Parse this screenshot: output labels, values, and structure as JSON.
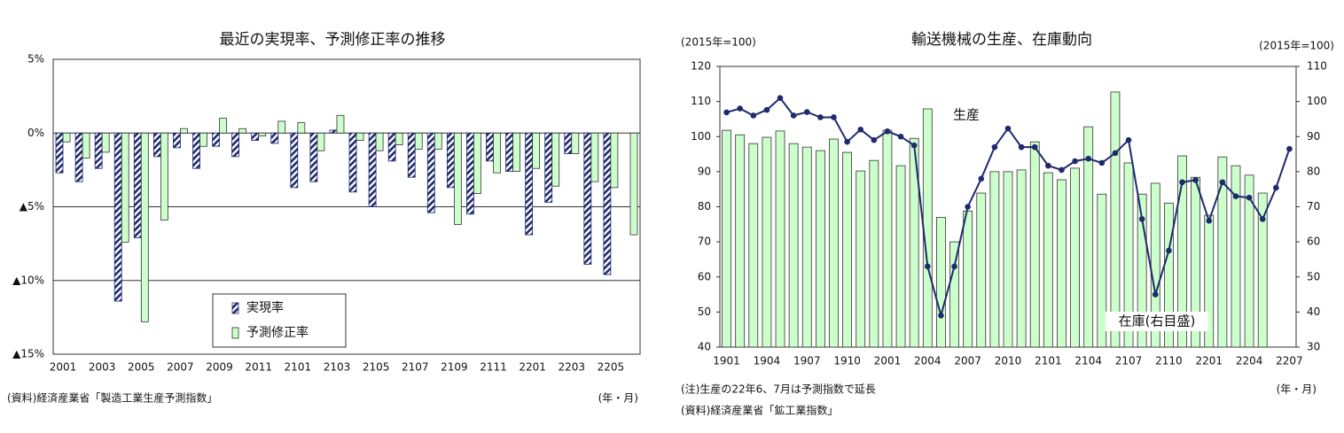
{
  "chart_data": [
    {
      "type": "bar",
      "title": "最近の実現率、予測修正率の推移",
      "categories": [
        "2001",
        null,
        "2003",
        null,
        "2005",
        null,
        "2007",
        null,
        "2009",
        null,
        "2011",
        null,
        "2101",
        null,
        "2103",
        null,
        "2105",
        null,
        "2107",
        null,
        "2109",
        null,
        "2111",
        null,
        "2201",
        null,
        "2203",
        null,
        "2205",
        null
      ],
      "series": [
        {
          "name": "実現率",
          "color": "#1f2a6e",
          "pattern": "hatch",
          "values": [
            -2.7,
            -3.3,
            -2.4,
            -11.4,
            -7.1,
            -1.6,
            -1.0,
            -2.4,
            -0.9,
            -1.6,
            -0.5,
            -0.7,
            -3.7,
            -3.3,
            0.2,
            -4.0,
            -5.0,
            -1.9,
            -3.0,
            -5.4,
            -3.7,
            -5.5,
            -1.9,
            -2.6,
            -6.9,
            -4.7,
            -1.4,
            -8.9,
            -9.6,
            null
          ]
        },
        {
          "name": "予測修正率",
          "color": "#ccffcc",
          "values": [
            -0.6,
            -1.7,
            -1.3,
            -7.4,
            -12.8,
            -5.9,
            0.3,
            -0.9,
            1.0,
            0.3,
            -0.2,
            0.8,
            0.7,
            -1.2,
            1.2,
            -0.5,
            -1.2,
            -0.8,
            -1.1,
            -1.1,
            -6.2,
            -4.1,
            -2.7,
            -2.6,
            -2.4,
            -3.6,
            -1.4,
            -3.3,
            -3.7,
            -6.9
          ]
        }
      ],
      "ylim": [
        -15,
        5
      ],
      "yticks": [
        {
          "value": 5,
          "label": "5%"
        },
        {
          "value": 0,
          "label": "0%"
        },
        {
          "value": -5,
          "label": "▲5%"
        },
        {
          "value": -10,
          "label": "▲10%"
        },
        {
          "value": -15,
          "label": "▲15%"
        }
      ],
      "grid": true,
      "legend": "lower center",
      "notes": [
        "(資料)経済産業省「製造工業生産予測指数」"
      ],
      "xlabel": "(年・月)"
    },
    {
      "type": "combo",
      "title": "輸送機械の生産、在庫動向",
      "categories": [
        "1901",
        null,
        null,
        "1904",
        null,
        null,
        "1907",
        null,
        null,
        "1910",
        null,
        null,
        "2001",
        null,
        null,
        "2004",
        null,
        null,
        "2007",
        null,
        null,
        "2010",
        null,
        null,
        "2101",
        null,
        null,
        "2104",
        null,
        null,
        "2107",
        null,
        null,
        "2110",
        null,
        null,
        "2201",
        null,
        null,
        "2204",
        null,
        null,
        "2207"
      ],
      "series": [
        {
          "name": "在庫(右目盛)",
          "kind": "bar",
          "axis": "y2",
          "color": "#ccffcc",
          "values": [
            91.8,
            90.5,
            88,
            89.8,
            91.6,
            88,
            87,
            86,
            89.3,
            85.5,
            80.2,
            83.2,
            91.8,
            81.7,
            89.5,
            97.9,
            67,
            60,
            68.8,
            73.9,
            80,
            80,
            80.5,
            88.5,
            79.7,
            77.7,
            81,
            92.8,
            73.6,
            102.7,
            82.5,
            73.6,
            76.7,
            71,
            84.5,
            78.4,
            67.6,
            84.2,
            81.7,
            79,
            73.9,
            null,
            null
          ]
        },
        {
          "name": "生産",
          "kind": "line",
          "color": "#1f2a6e",
          "values": [
            106.9,
            108,
            106,
            107.6,
            111,
            106,
            107,
            105.5,
            105.5,
            98.5,
            102,
            99,
            101.5,
            100,
            97.5,
            63,
            49,
            63,
            80,
            88,
            97,
            102.3,
            97,
            97,
            91.7,
            90.5,
            93,
            93.7,
            92.5,
            95.3,
            99,
            76.5,
            55,
            67.5,
            87,
            87.6,
            76,
            87,
            83,
            82.6,
            76.5,
            85.4,
            96.5
          ]
        }
      ],
      "ylim": [
        40,
        120
      ],
      "yticks": [
        40,
        50,
        60,
        70,
        80,
        90,
        100,
        110,
        120
      ],
      "y2lim": [
        30,
        110
      ],
      "y2ticks": [
        30,
        40,
        50,
        60,
        70,
        80,
        90,
        100,
        110
      ],
      "ylabel": "(2015年=100)",
      "y2label": "(2015年=100)",
      "grid": false,
      "notes": [
        "(注)生産の22年6、7月は予測指数で延長",
        "(資料)経済産業省「鉱工業指数」"
      ],
      "xlabel": "(年・月)"
    }
  ]
}
